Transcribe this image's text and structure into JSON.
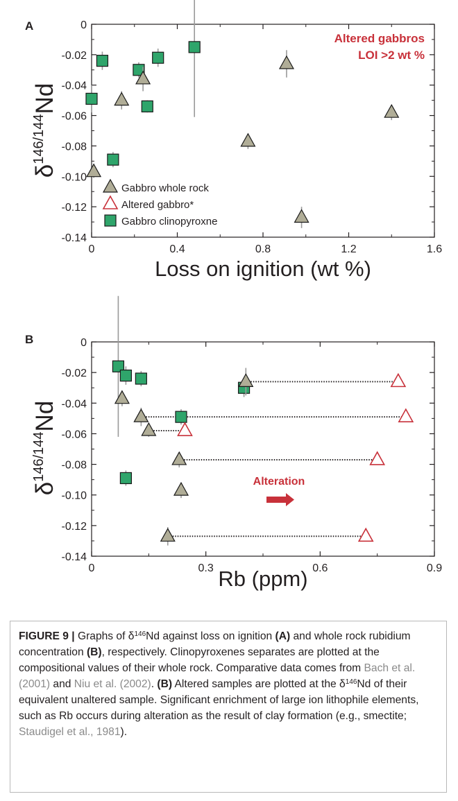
{
  "chart_data": [
    {
      "panel": "A",
      "type": "scatter",
      "annotation": [
        "Altered gabbros",
        "LOI >2 wt %"
      ],
      "xlabel": "Loss on ignition (wt %)",
      "ylabel": "δ146/144Nd",
      "xlim": [
        0,
        1.6
      ],
      "ylim": [
        -0.14,
        0
      ],
      "xticks": [
        "0",
        "0.4",
        "0.8",
        "1.2",
        "1.6"
      ],
      "yticks": [
        "0",
        "-0.02",
        "-0.04",
        "-0.06",
        "-0.08",
        "-0.10",
        "-0.12",
        "-0.14"
      ],
      "legend_position": "bottom-left",
      "series": [
        {
          "name": "Gabbro whole rock",
          "marker": "triangle",
          "color": "#b0ad97",
          "points": [
            [
              0.01,
              -0.097
            ],
            [
              0.14,
              -0.05
            ],
            [
              0.24,
              -0.036
            ],
            [
              0.73,
              -0.077
            ],
            [
              0.91,
              -0.026
            ],
            [
              0.98,
              -0.127
            ],
            [
              1.4,
              -0.058
            ]
          ],
          "err": [
            0.004,
            0.006,
            0.008,
            0.005,
            0.009,
            0.007,
            0.005
          ]
        },
        {
          "name": "Altered gabbro*",
          "marker": "triangle-open",
          "color": "#c8313a",
          "points": [],
          "err": []
        },
        {
          "name": "Gabbro clinopyroxne",
          "marker": "square",
          "color": "#2fa56b",
          "points": [
            [
              0.0,
              -0.049
            ],
            [
              0.05,
              -0.024
            ],
            [
              0.1,
              -0.089
            ],
            [
              0.22,
              -0.03
            ],
            [
              0.26,
              -0.054
            ],
            [
              0.31,
              -0.022
            ],
            [
              0.48,
              -0.015
            ]
          ],
          "err": [
            0.009,
            0.006,
            0.005,
            0.005,
            0.004,
            0.006,
            0.046
          ]
        }
      ]
    },
    {
      "panel": "B",
      "type": "scatter",
      "annotation": [
        "Alteration"
      ],
      "xlabel": "Rb (ppm)",
      "ylabel": "δ146/144Nd",
      "xlim": [
        0,
        0.9
      ],
      "ylim": [
        -0.14,
        0
      ],
      "xticks": [
        "0",
        "0.3",
        "0.6",
        "0.9"
      ],
      "yticks": [
        "0",
        "-0.02",
        "-0.04",
        "-0.06",
        "-0.08",
        "-0.10",
        "-0.12",
        "-0.14"
      ],
      "series": [
        {
          "name": "Gabbro whole rock",
          "marker": "triangle",
          "color": "#b0ad97",
          "points": [
            [
              0.08,
              -0.037
            ],
            [
              0.13,
              -0.049
            ],
            [
              0.15,
              -0.058
            ],
            [
              0.23,
              -0.077
            ],
            [
              0.235,
              -0.097
            ],
            [
              0.2,
              -0.127
            ],
            [
              0.405,
              -0.026
            ]
          ],
          "err": [
            0.005,
            0.006,
            0.004,
            0.005,
            0.005,
            0.006,
            0.009
          ]
        },
        {
          "name": "Altered gabbro*",
          "marker": "triangle-open",
          "color": "#c8313a",
          "points": [
            [
              0.805,
              -0.026
            ],
            [
              0.825,
              -0.049
            ],
            [
              0.245,
              -0.058
            ],
            [
              0.75,
              -0.077
            ],
            [
              0.72,
              -0.127
            ]
          ],
          "err": [
            0,
            0,
            0,
            0,
            0
          ]
        },
        {
          "name": "Gabbro clinopyroxne",
          "marker": "square",
          "color": "#2fa56b",
          "points": [
            [
              0.07,
              -0.016
            ],
            [
              0.09,
              -0.022
            ],
            [
              0.13,
              -0.024
            ],
            [
              0.09,
              -0.089
            ],
            [
              0.235,
              -0.049
            ],
            [
              0.4,
              -0.03
            ]
          ],
          "err": [
            0.046,
            0.006,
            0.005,
            0.005,
            0.005,
            0.006
          ]
        }
      ],
      "links": [
        [
          [
            0.405,
            -0.026
          ],
          [
            0.805,
            -0.026
          ]
        ],
        [
          [
            0.13,
            -0.049
          ],
          [
            0.825,
            -0.049
          ]
        ],
        [
          [
            0.15,
            -0.058
          ],
          [
            0.245,
            -0.058
          ]
        ],
        [
          [
            0.23,
            -0.077
          ],
          [
            0.75,
            -0.077
          ]
        ],
        [
          [
            0.2,
            -0.127
          ],
          [
            0.72,
            -0.127
          ]
        ]
      ]
    }
  ],
  "caption": {
    "label": "FIGURE 9 |",
    "t1": " Graphs of δ",
    "sup1": "146",
    "t2": "Nd against loss on ignition ",
    "bA": "(A)",
    "t3": " and whole rock rubidium concentration ",
    "bB": "(B)",
    "t4": ", respectively. Clinopyroxenes separates are plotted at the compositional values of their whole rock. Comparative data comes from ",
    "ref1": "Bach et al. (2001)",
    "t5": " and ",
    "ref2": "Niu et al. (2002)",
    "t6": ". ",
    "bB2": "(B)",
    "t7": " Altered samples are plotted at the δ",
    "sup2": "146",
    "t8": "Nd of their equivalent unaltered sample. Significant enrichment of large ion lithophile elements, such as Rb occurs during alteration as the result of clay formation (e.g., smectite; ",
    "ref3": "Staudigel et al., 1981",
    "t9": ")."
  }
}
